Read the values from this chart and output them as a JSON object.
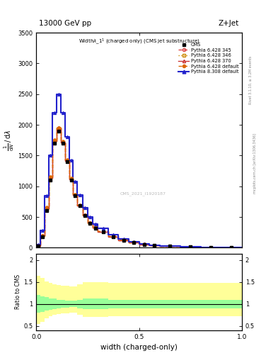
{
  "title_main": "13000 GeV pp",
  "title_right": "Z+Jet",
  "plot_title": "Widthλ_1¹ (charged only) (CMS jet substructure)",
  "xlabel": "width (charged-only)",
  "ylabel_ratio": "Ratio to CMS",
  "watermark": "CMS_2021_I1920187",
  "right_label": "mcplots.cern.ch [arXiv:1306.3436]",
  "right_label2": "Rivet 3.1.10, ≥ 3.2M events",
  "xlim": [
    0,
    1.0
  ],
  "ylim_main": [
    0,
    3500
  ],
  "ylim_ratio": [
    0.4,
    2.15
  ],
  "yticks_main": [
    0,
    500,
    1000,
    1500,
    2000,
    2500,
    3000,
    3500
  ],
  "yticks_ratio": [
    0.5,
    1.0,
    1.5,
    2.0
  ],
  "x_bins": [
    0.0,
    0.02,
    0.04,
    0.06,
    0.08,
    0.1,
    0.12,
    0.14,
    0.16,
    0.18,
    0.2,
    0.225,
    0.25,
    0.275,
    0.3,
    0.35,
    0.4,
    0.45,
    0.5,
    0.55,
    0.6,
    0.7,
    0.8,
    0.9,
    1.0
  ],
  "cms_y": [
    30,
    180,
    600,
    1100,
    1700,
    1900,
    1700,
    1400,
    1100,
    850,
    680,
    520,
    400,
    320,
    260,
    180,
    120,
    80,
    55,
    38,
    28,
    15,
    8,
    3
  ],
  "py6_345_y": [
    35,
    200,
    650,
    1150,
    1750,
    1950,
    1720,
    1420,
    1120,
    860,
    690,
    530,
    405,
    325,
    265,
    185,
    125,
    82,
    57,
    40,
    30,
    16,
    9,
    3.5
  ],
  "py6_346_y": [
    32,
    190,
    630,
    1130,
    1730,
    1940,
    1710,
    1410,
    1110,
    855,
    685,
    525,
    402,
    322,
    262,
    182,
    122,
    80,
    55,
    39,
    29,
    15.5,
    8.5,
    3.2
  ],
  "py6_370_y": [
    33,
    195,
    640,
    1140,
    1740,
    1945,
    1715,
    1415,
    1115,
    857,
    687,
    527,
    403,
    323,
    263,
    183,
    123,
    81,
    56,
    39.5,
    29.5,
    15.8,
    8.8,
    3.3
  ],
  "py6_def_y": [
    36,
    205,
    660,
    1160,
    1760,
    1960,
    1730,
    1430,
    1130,
    865,
    695,
    535,
    408,
    328,
    268,
    188,
    128,
    84,
    58,
    41,
    31,
    16.5,
    9.2,
    3.6
  ],
  "py8_def_y": [
    50,
    280,
    850,
    1500,
    2200,
    2500,
    2200,
    1800,
    1420,
    1080,
    855,
    650,
    495,
    390,
    315,
    215,
    142,
    93,
    63,
    44,
    33,
    17.5,
    9.8,
    3.9
  ],
  "color_py6_345": "#dd4444",
  "color_py6_346": "#cc8800",
  "color_py6_370": "#cc3333",
  "color_py6_def": "#dd6600",
  "color_py8_def": "#2222cc",
  "color_cms": "#000000",
  "ratio_bins": [
    0.0,
    0.02,
    0.04,
    0.06,
    0.08,
    0.1,
    0.12,
    0.14,
    0.16,
    0.18,
    0.2,
    0.225,
    0.25,
    0.275,
    0.3,
    0.35,
    0.4,
    0.45,
    0.5,
    0.55,
    0.6,
    0.7,
    0.8,
    0.9,
    1.0
  ],
  "ratio_yellow_lo": [
    0.55,
    0.6,
    0.68,
    0.72,
    0.75,
    0.77,
    0.78,
    0.79,
    0.8,
    0.8,
    0.75,
    0.7,
    0.7,
    0.7,
    0.7,
    0.72,
    0.72,
    0.72,
    0.72,
    0.72,
    0.72,
    0.72,
    0.72,
    0.72
  ],
  "ratio_yellow_hi": [
    1.65,
    1.6,
    1.52,
    1.48,
    1.45,
    1.43,
    1.42,
    1.41,
    1.4,
    1.4,
    1.45,
    1.5,
    1.5,
    1.5,
    1.5,
    1.48,
    1.48,
    1.48,
    1.48,
    1.48,
    1.48,
    1.48,
    1.48,
    1.48
  ],
  "ratio_green_lo": [
    0.8,
    0.82,
    0.85,
    0.87,
    0.88,
    0.9,
    0.91,
    0.92,
    0.93,
    0.93,
    0.9,
    0.88,
    0.88,
    0.88,
    0.88,
    0.9,
    0.9,
    0.9,
    0.9,
    0.9,
    0.9,
    0.9,
    0.9,
    0.9
  ],
  "ratio_green_hi": [
    1.2,
    1.18,
    1.15,
    1.13,
    1.12,
    1.1,
    1.09,
    1.08,
    1.07,
    1.07,
    1.1,
    1.12,
    1.12,
    1.12,
    1.12,
    1.1,
    1.1,
    1.1,
    1.1,
    1.1,
    1.1,
    1.1,
    1.1,
    1.1
  ]
}
